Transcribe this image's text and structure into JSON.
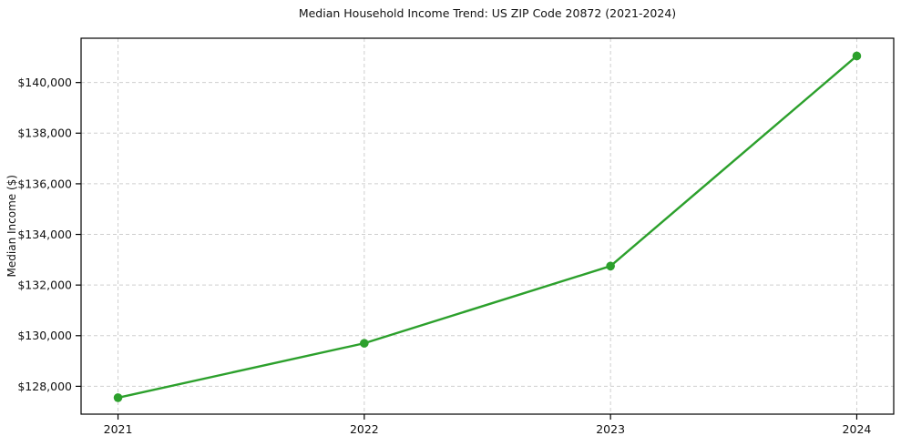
{
  "chart_data": {
    "type": "line",
    "title": "Median Household Income Trend: US ZIP Code 20872 (2021-2024)",
    "xlabel": "",
    "ylabel": "Median Income ($)",
    "x": [
      2021,
      2022,
      2023,
      2024
    ],
    "values": [
      127550,
      129700,
      132750,
      141050
    ],
    "x_tick_labels": [
      "2021",
      "2022",
      "2023",
      "2024"
    ],
    "y_tick_values": [
      128000,
      130000,
      132000,
      134000,
      136000,
      138000,
      140000
    ],
    "y_tick_labels": [
      "$128,000",
      "$130,000",
      "$132,000",
      "$134,000",
      "$136,000",
      "$138,000",
      "$140,000"
    ],
    "xlim": [
      2020.85,
      2024.15
    ],
    "ylim": [
      126900,
      141750
    ],
    "grid": true,
    "grid_style": "dashed",
    "legend": "none",
    "line_color": "#2ca02c",
    "marker": "circle",
    "grid_color": "#cfcfcf",
    "axis_color": "#000000",
    "text_color": "#111111",
    "background_color": "#ffffff"
  }
}
